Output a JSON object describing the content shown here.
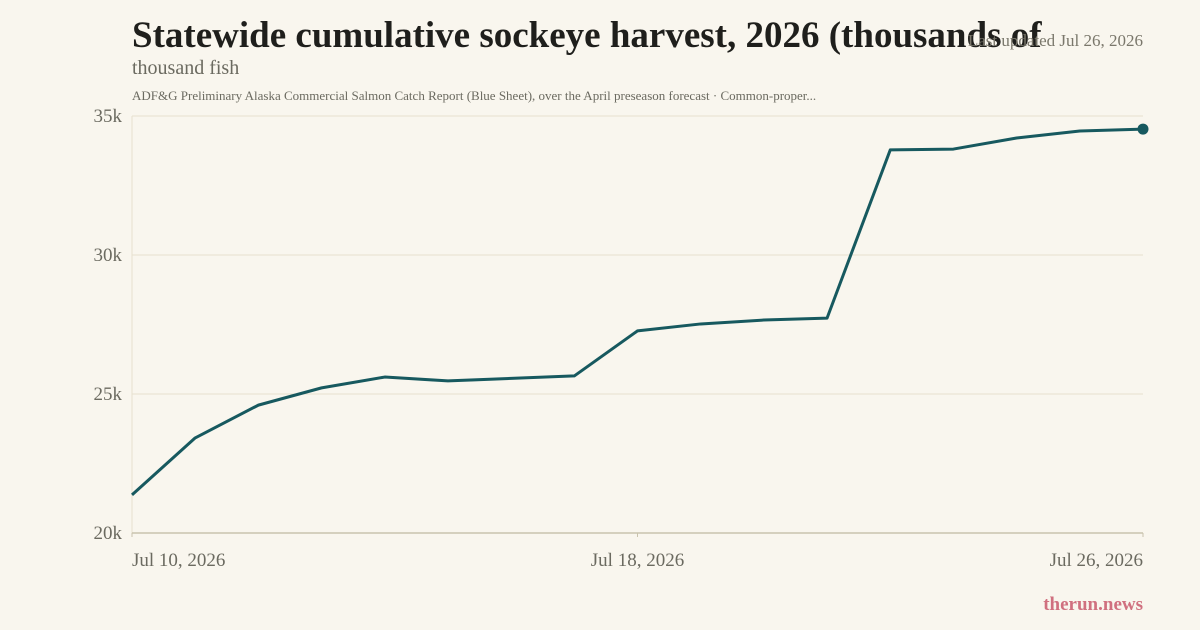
{
  "chart_data": {
    "type": "line",
    "title": "Statewide cumulative sockeye harvest, 2026 (thousands of",
    "subtitle": "thousand fish",
    "note": "ADF&G Preliminary Alaska Commercial Salmon Catch Report (Blue Sheet), over the April preseason forecast · Common-proper...",
    "updated": "Last updated Jul 26, 2026",
    "brand": "therun.news",
    "x": [
      "2026-07-10",
      "2026-07-11",
      "2026-07-12",
      "2026-07-13",
      "2026-07-14",
      "2026-07-15",
      "2026-07-16",
      "2026-07-17",
      "2026-07-18",
      "2026-07-19",
      "2026-07-20",
      "2026-07-21",
      "2026-07-22",
      "2026-07-23",
      "2026-07-24",
      "2026-07-25",
      "2026-07-26"
    ],
    "series": [
      {
        "name": "Cumulative sockeye harvest",
        "color": "#17595f",
        "values": [
          21370,
          23420,
          24600,
          25220,
          25610,
          25470,
          25560,
          25650,
          27270,
          27520,
          27660,
          27730,
          33780,
          33810,
          34210,
          34460,
          34530
        ]
      }
    ],
    "xlim": [
      "2026-07-10",
      "2026-07-26"
    ],
    "xticks": [
      {
        "value": "2026-07-10",
        "label": "Jul 10, 2026"
      },
      {
        "value": "2026-07-18",
        "label": "Jul 18, 2026"
      },
      {
        "value": "2026-07-26",
        "label": "Jul 26, 2026"
      }
    ],
    "ylim": [
      20000,
      35000
    ],
    "yticks": [
      {
        "value": 20000,
        "label": "20k"
      },
      {
        "value": 25000,
        "label": "25k"
      },
      {
        "value": 30000,
        "label": "30k"
      },
      {
        "value": 35000,
        "label": "35k"
      }
    ],
    "grid": true
  }
}
